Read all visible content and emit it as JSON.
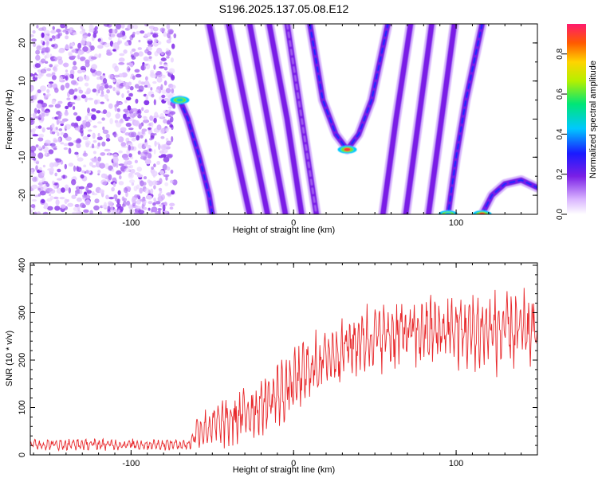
{
  "title": "S196.2025.137.05.08.E12",
  "chart_data": [
    {
      "type": "heatmap",
      "xlabel": "Height of straight line (km)",
      "ylabel": "Frequency (Hz)",
      "xlim": [
        -162,
        150
      ],
      "ylim": [
        -25,
        25
      ],
      "xticks": [
        -100,
        0,
        100
      ],
      "yticks": [
        -20,
        -10,
        0,
        10,
        20
      ],
      "colorbar": {
        "label": "Normalized spectral amplitude",
        "range": [
          0,
          0.95
        ],
        "ticks": [
          0.0,
          0.2,
          0.4,
          0.6,
          0.8
        ],
        "tick_labels": [
          "0.0",
          "0.2",
          "0.4",
          "0.6",
          "0.8"
        ],
        "colormap": "rainbow"
      },
      "noise_region": {
        "x": [
          -162,
          -73
        ],
        "level": "0.0-0.2"
      },
      "ridges": [
        {
          "name": "upper-left fragment",
          "points": [
            [
              -70,
              5
            ],
            [
              -65,
              0
            ],
            [
              -58,
              -10
            ],
            [
              -52,
              -20
            ],
            [
              -50,
              -25
            ]
          ],
          "peak": 0.5
        },
        {
          "name": "line 1",
          "points": [
            [
              -52,
              25
            ],
            [
              -40,
              0
            ],
            [
              -27,
              -25
            ]
          ],
          "peak": 0.2
        },
        {
          "name": "line 2",
          "points": [
            [
              -40,
              25
            ],
            [
              -28,
              0
            ],
            [
              -16,
              -25
            ]
          ],
          "peak": 0.2
        },
        {
          "name": "line 3",
          "points": [
            [
              -27,
              25
            ],
            [
              -16,
              0
            ],
            [
              -5,
              -25
            ]
          ],
          "peak": 0.2
        },
        {
          "name": "line 4",
          "points": [
            [
              -15,
              25
            ],
            [
              -4,
              0
            ],
            [
              5,
              -25
            ]
          ],
          "peak": 0.2
        },
        {
          "name": "line 5",
          "points": [
            [
              -4,
              25
            ],
            [
              5,
              0
            ],
            [
              14,
              -25
            ]
          ],
          "peak": 0.15
        },
        {
          "name": "parabola",
          "points": [
            [
              10,
              25
            ],
            [
              18,
              5
            ],
            [
              26,
              -4
            ],
            [
              33,
              -8
            ],
            [
              40,
              -4
            ],
            [
              48,
              5
            ],
            [
              58,
              25
            ]
          ],
          "peak": 0.95
        },
        {
          "name": "line 6",
          "points": [
            [
              72,
              25
            ],
            [
              63,
              0
            ],
            [
              55,
              -25
            ]
          ],
          "peak": 0.2
        },
        {
          "name": "line 7",
          "points": [
            [
              85,
              25
            ],
            [
              77,
              0
            ],
            [
              69,
              -25
            ]
          ],
          "peak": 0.2
        },
        {
          "name": "line 8",
          "points": [
            [
              99,
              25
            ],
            [
              91,
              0
            ],
            [
              83,
              -25
            ]
          ],
          "peak": 0.2
        },
        {
          "name": "line 9",
          "points": [
            [
              116,
              25
            ],
            [
              106,
              5
            ],
            [
              100,
              -10
            ],
            [
              95,
              -25
            ]
          ],
          "peak": 0.45
        },
        {
          "name": "lower-right arc",
          "points": [
            [
              116,
              -25
            ],
            [
              122,
              -20
            ],
            [
              130,
              -17
            ],
            [
              140,
              -16
            ],
            [
              150,
              -18
            ]
          ],
          "peak": 0.95
        }
      ]
    },
    {
      "type": "line",
      "xlabel": "Height of straight line (km)",
      "ylabel": "SNR (10 * v/v)",
      "xlim": [
        -162,
        150
      ],
      "ylim": [
        0,
        405
      ],
      "xticks": [
        -100,
        0,
        100
      ],
      "yticks": [
        0,
        100,
        200,
        300,
        400
      ],
      "color": "#e8282b",
      "series": [
        {
          "values_description_x": [
            -162,
            -140,
            -120,
            -100,
            -80,
            -64,
            -60,
            -50,
            -40,
            -30,
            -20,
            -10,
            0,
            10,
            20,
            30,
            40,
            50,
            60,
            70,
            80,
            90,
            100,
            110,
            120,
            130,
            140,
            150
          ],
          "baseline": [
            22,
            22,
            22,
            22,
            22,
            22,
            50,
            60,
            70,
            85,
            105,
            125,
            150,
            180,
            205,
            225,
            240,
            250,
            255,
            258,
            260,
            262,
            263,
            262,
            262,
            262,
            261,
            260
          ],
          "amplitude": [
            12,
            12,
            12,
            12,
            12,
            12,
            35,
            45,
            55,
            60,
            65,
            70,
            70,
            70,
            70,
            70,
            72,
            75,
            75,
            75,
            75,
            78,
            80,
            85,
            90,
            90,
            90,
            90
          ]
        }
      ]
    }
  ]
}
